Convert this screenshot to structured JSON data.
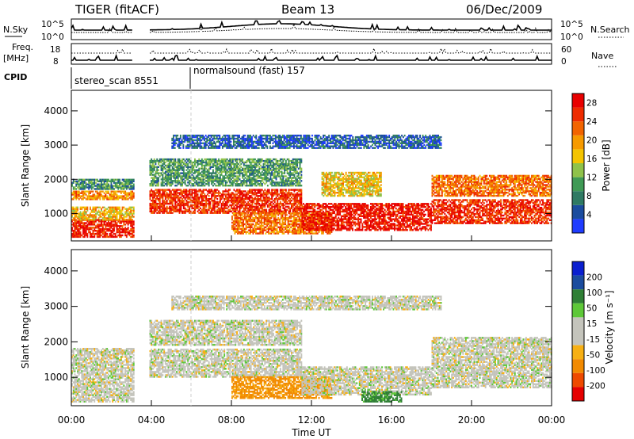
{
  "header": {
    "title": "TIGER (fitACF)",
    "beam": "Beam 13",
    "date": "06/Dec/2009"
  },
  "top_panels": {
    "nsky_label": "N.Sky",
    "nsearch_label": "N.Search",
    "nsky_ticks": [
      "10^5",
      "10^0"
    ],
    "nsearch_ticks": [
      "10^5",
      "10^0"
    ],
    "freq_label": "Freq.",
    "freq_unit": "[MHz]",
    "freq_ticks": [
      "18",
      "8"
    ],
    "nave_ticks": [
      "60",
      "0"
    ],
    "nave_label": "Nave",
    "cpid_label": "CPID",
    "cpid_modes": [
      "stereo_scan 8551",
      "normalsound (fast) 157"
    ]
  },
  "colors": {
    "power": [
      "#1f3cff",
      "#1b4c9e",
      "#2f7a63",
      "#3f9a55",
      "#8fc24a",
      "#f4c400",
      "#f69a00",
      "#f26400",
      "#ee2b00",
      "#e80000"
    ],
    "velocity_pos": [
      "#0a1fcf",
      "#1b4c9e",
      "#2f7f35",
      "#5ec838"
    ],
    "velocity_mid": "#c4c4bc",
    "velocity_neg": [
      "#f7b014",
      "#f28a00",
      "#ee4a00",
      "#e50000"
    ]
  },
  "chart_data": [
    {
      "type": "heatmap",
      "panel": "power",
      "ylabel": "Slant Range [km]",
      "ylim": [
        200,
        4600
      ],
      "yticks": [
        "1000",
        "2000",
        "3000",
        "4000"
      ],
      "xlabel": "",
      "xlim": [
        "00:00",
        "24:00"
      ],
      "colorbar_label": "Power [dB]",
      "colorbar_ticks": [
        "4",
        "8",
        "12",
        "16",
        "20",
        "24",
        "28"
      ],
      "colorbar_range": [
        0,
        30
      ],
      "data_gaps_hours": [
        [
          3.1,
          3.9
        ]
      ],
      "bands": [
        {
          "t0": 0.0,
          "t1": 3.1,
          "r0": 300,
          "r1": 800,
          "value": 27
        },
        {
          "t0": 0.0,
          "t1": 3.1,
          "r0": 800,
          "r1": 1200,
          "value": 18
        },
        {
          "t0": 0.0,
          "t1": 3.1,
          "r0": 1400,
          "r1": 1650,
          "value": 20
        },
        {
          "t0": 0.0,
          "t1": 3.1,
          "r0": 1700,
          "r1": 2000,
          "value": 9
        },
        {
          "t0": 3.9,
          "t1": 11.5,
          "r0": 1000,
          "r1": 1700,
          "value": 26
        },
        {
          "t0": 3.9,
          "t1": 11.5,
          "r0": 1800,
          "r1": 2600,
          "value": 10
        },
        {
          "t0": 8.0,
          "t1": 13.0,
          "r0": 400,
          "r1": 1000,
          "value": 22
        },
        {
          "t0": 11.5,
          "t1": 18.0,
          "r0": 500,
          "r1": 1300,
          "value": 28
        },
        {
          "t0": 12.5,
          "t1": 15.5,
          "r0": 1500,
          "r1": 2200,
          "value": 17
        },
        {
          "t0": 18.0,
          "t1": 24.0,
          "r0": 700,
          "r1": 1400,
          "value": 26
        },
        {
          "t0": 18.0,
          "t1": 24.0,
          "r0": 1500,
          "r1": 2100,
          "value": 22
        },
        {
          "t0": 5.0,
          "t1": 18.5,
          "r0": 2900,
          "r1": 3300,
          "value": 5
        }
      ]
    },
    {
      "type": "heatmap",
      "panel": "velocity",
      "ylabel": "Slant Range [km]",
      "ylim": [
        200,
        4600
      ],
      "yticks": [
        "1000",
        "2000",
        "3000",
        "4000"
      ],
      "xlabel": "Time UT",
      "xticks": [
        "00:00",
        "04:00",
        "08:00",
        "12:00",
        "16:00",
        "20:00",
        "00:00"
      ],
      "xlim": [
        "00:00",
        "24:00"
      ],
      "colorbar_label": "Velocity [m s⁻¹]",
      "colorbar_ticks": [
        "200",
        "100",
        "50",
        "15",
        "-15",
        "-50",
        "-100",
        "-200"
      ],
      "data_gaps_hours": [
        [
          3.1,
          3.9
        ]
      ],
      "bands": [
        {
          "t0": 0.0,
          "t1": 3.1,
          "r0": 300,
          "r1": 1800,
          "value": 0
        },
        {
          "t0": 3.9,
          "t1": 11.5,
          "r0": 1000,
          "r1": 1800,
          "value": 0
        },
        {
          "t0": 3.9,
          "t1": 11.5,
          "r0": 1900,
          "r1": 2600,
          "value": 0
        },
        {
          "t0": 8.0,
          "t1": 13.0,
          "r0": 400,
          "r1": 1000,
          "value": -40
        },
        {
          "t0": 11.5,
          "t1": 18.0,
          "r0": 500,
          "r1": 1300,
          "value": 0
        },
        {
          "t0": 14.5,
          "t1": 16.5,
          "r0": 300,
          "r1": 600,
          "value": 40
        },
        {
          "t0": 18.0,
          "t1": 24.0,
          "r0": 700,
          "r1": 2100,
          "value": 0
        },
        {
          "t0": 5.0,
          "t1": 18.5,
          "r0": 2900,
          "r1": 3300,
          "value": 0
        }
      ]
    }
  ]
}
